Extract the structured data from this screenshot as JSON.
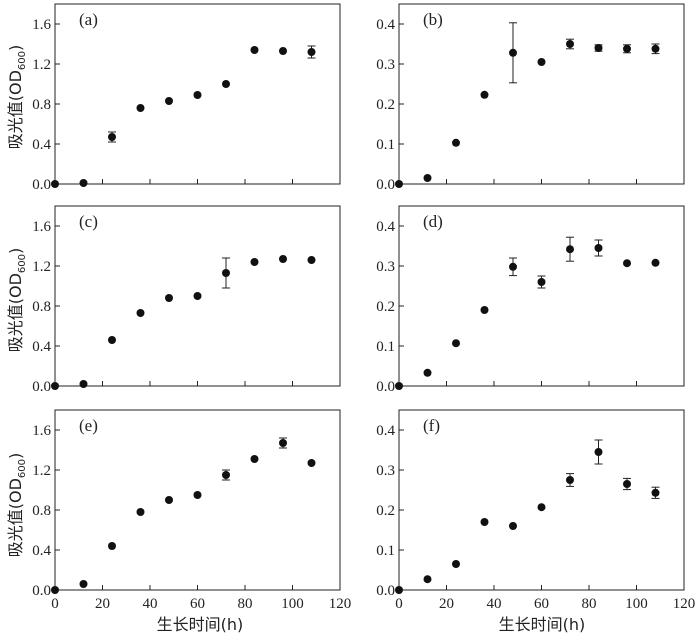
{
  "figure": {
    "ylabel_main": "吸光值(OD",
    "ylabel_sub": "600",
    "ylabel_close": ")",
    "xlabel": "生长时间(h)"
  },
  "chart_data": [
    {
      "type": "scatter",
      "label": "(a)",
      "xlim": [
        0,
        120
      ],
      "ylim": [
        0,
        1.8
      ],
      "yticks": [
        "0.0",
        "0.4",
        "0.8",
        "1.2",
        "1.6"
      ],
      "ytick_values": [
        0,
        0.4,
        0.8,
        1.2,
        1.6
      ],
      "x": [
        0,
        12,
        24,
        36,
        48,
        60,
        72,
        84,
        96,
        108
      ],
      "y": [
        0.0,
        0.01,
        0.47,
        0.76,
        0.83,
        0.89,
        1.0,
        1.34,
        1.33,
        1.32
      ],
      "err": [
        0,
        0,
        0.05,
        0,
        0,
        0,
        0,
        0,
        0,
        0.06
      ]
    },
    {
      "type": "scatter",
      "label": "(b)",
      "xlim": [
        0,
        120
      ],
      "ylim": [
        0,
        0.45
      ],
      "yticks": [
        "0.0",
        "0.1",
        "0.2",
        "0.3",
        "0.4"
      ],
      "ytick_values": [
        0,
        0.1,
        0.2,
        0.3,
        0.4
      ],
      "x": [
        0,
        12,
        24,
        36,
        48,
        60,
        72,
        84,
        96,
        108
      ],
      "y": [
        0.0,
        0.015,
        0.103,
        0.223,
        0.328,
        0.305,
        0.35,
        0.34,
        0.338,
        0.338
      ],
      "err": [
        0,
        0,
        0,
        0,
        0.075,
        0,
        0.012,
        0.008,
        0.01,
        0.012
      ]
    },
    {
      "type": "scatter",
      "label": "(c)",
      "xlim": [
        0,
        120
      ],
      "ylim": [
        0,
        1.8
      ],
      "yticks": [
        "0.0",
        "0.4",
        "0.8",
        "1.2",
        "1.6"
      ],
      "ytick_values": [
        0,
        0.4,
        0.8,
        1.2,
        1.6
      ],
      "x": [
        0,
        12,
        24,
        36,
        48,
        60,
        72,
        84,
        96,
        108
      ],
      "y": [
        0.0,
        0.02,
        0.46,
        0.73,
        0.88,
        0.9,
        1.13,
        1.24,
        1.27,
        1.26
      ],
      "err": [
        0,
        0,
        0,
        0,
        0,
        0,
        0.15,
        0,
        0,
        0
      ]
    },
    {
      "type": "scatter",
      "label": "(d)",
      "xlim": [
        0,
        120
      ],
      "ylim": [
        0,
        0.45
      ],
      "yticks": [
        "0.0",
        "0.1",
        "0.2",
        "0.3",
        "0.4"
      ],
      "ytick_values": [
        0,
        0.1,
        0.2,
        0.3,
        0.4
      ],
      "x": [
        0,
        12,
        24,
        36,
        48,
        60,
        72,
        84,
        96,
        108
      ],
      "y": [
        0.0,
        0.033,
        0.107,
        0.19,
        0.298,
        0.26,
        0.342,
        0.345,
        0.307,
        0.308
      ],
      "err": [
        0,
        0,
        0,
        0,
        0.022,
        0.015,
        0.03,
        0.02,
        0,
        0
      ]
    },
    {
      "type": "scatter",
      "label": "(e)",
      "xlim": [
        0,
        120
      ],
      "ylim": [
        0,
        1.8
      ],
      "yticks": [
        "0.0",
        "0.4",
        "0.8",
        "1.2",
        "1.6"
      ],
      "ytick_values": [
        0,
        0.4,
        0.8,
        1.2,
        1.6
      ],
      "xticks": [
        "0",
        "20",
        "40",
        "60",
        "80",
        "100",
        "120"
      ],
      "xtick_values": [
        0,
        20,
        40,
        60,
        80,
        100,
        120
      ],
      "x": [
        0,
        12,
        24,
        36,
        48,
        60,
        72,
        84,
        96,
        108
      ],
      "y": [
        0.0,
        0.06,
        0.44,
        0.78,
        0.9,
        0.95,
        1.15,
        1.31,
        1.47,
        1.27
      ],
      "err": [
        0,
        0,
        0,
        0,
        0,
        0,
        0.05,
        0,
        0.05,
        0
      ]
    },
    {
      "type": "scatter",
      "label": "(f)",
      "xlim": [
        0,
        120
      ],
      "ylim": [
        0,
        0.45
      ],
      "yticks": [
        "0.0",
        "0.1",
        "0.2",
        "0.3",
        "0.4"
      ],
      "ytick_values": [
        0,
        0.1,
        0.2,
        0.3,
        0.4
      ],
      "xticks": [
        "0",
        "20",
        "40",
        "60",
        "80",
        "100",
        "120"
      ],
      "xtick_values": [
        0,
        20,
        40,
        60,
        80,
        100,
        120
      ],
      "x": [
        0,
        12,
        24,
        36,
        48,
        60,
        72,
        84,
        96,
        108
      ],
      "y": [
        0.0,
        0.027,
        0.065,
        0.17,
        0.16,
        0.207,
        0.275,
        0.345,
        0.265,
        0.243
      ],
      "err": [
        0,
        0,
        0,
        0,
        0,
        0,
        0.016,
        0.03,
        0.014,
        0.014
      ]
    }
  ]
}
